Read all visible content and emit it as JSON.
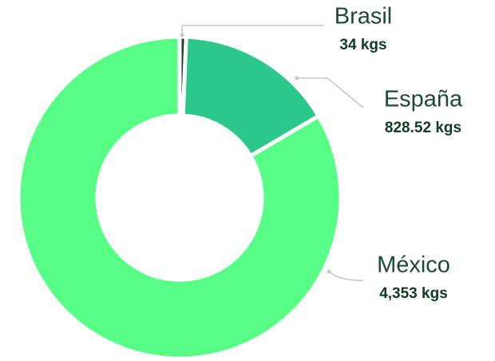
{
  "chart_data": {
    "type": "donut",
    "categories": [
      "Brasil",
      "España",
      "México"
    ],
    "values": [
      34,
      828.52,
      4353
    ],
    "value_labels": [
      "34 kgs",
      "828.52 kgs",
      "4,353 kgs"
    ],
    "colors": [
      "#173f2f",
      "#2cc88b",
      "#58ff87"
    ]
  }
}
